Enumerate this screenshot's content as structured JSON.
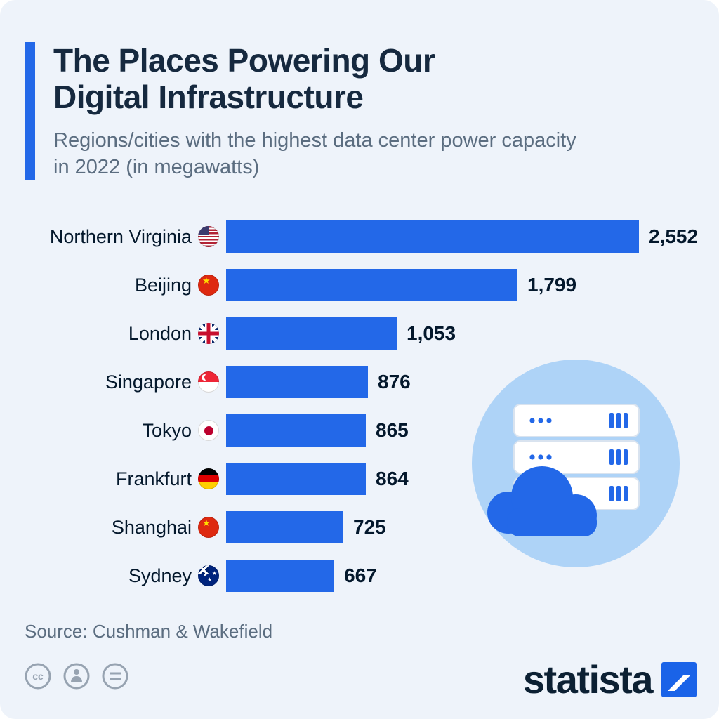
{
  "header": {
    "title": "The Places Powering Our Digital Infrastructure",
    "title_lines": [
      "The Places Powering Our",
      "Digital Infrastructure"
    ],
    "subtitle": "Regions/cities with the highest data center power capacity in 2022 (in megawatts)",
    "subtitle_lines": [
      "Regions/cities with the highest data center power capacity",
      "in 2022 (in megawatts)"
    ]
  },
  "chart_data": {
    "type": "bar",
    "orientation": "horizontal",
    "title": "The Places Powering Our Digital Infrastructure",
    "subtitle": "Regions/cities with the highest data center power capacity in 2022 (in megawatts)",
    "unit": "megawatts",
    "year": 2022,
    "categories": [
      "Northern Virginia",
      "Beijing",
      "London",
      "Singapore",
      "Tokyo",
      "Frankfurt",
      "Shanghai",
      "Sydney"
    ],
    "values": [
      2552,
      1799,
      1053,
      876,
      865,
      864,
      725,
      667
    ],
    "value_labels": [
      "2,552",
      "1,799",
      "1,053",
      "876",
      "865",
      "864",
      "725",
      "667"
    ],
    "flags": [
      "us",
      "cn",
      "gb",
      "sg",
      "jp",
      "de",
      "cn",
      "au"
    ],
    "xlim": [
      0,
      2552
    ],
    "grid": false,
    "legend": false
  },
  "illustration": {
    "name": "data-center-servers-and-cloud",
    "server_count": 3
  },
  "footer": {
    "source": "Source: Cushman & Wakefield",
    "brand_text": "statista",
    "license_icons": [
      "cc-icon",
      "attribution-person-icon",
      "equals-icon"
    ]
  },
  "colors": {
    "background": "#eef3fa",
    "accent_bar": "#2368e8",
    "bar": "#2368e8",
    "title": "#16293f",
    "subtitle": "#5b6d80",
    "label": "#04182c",
    "value": "#04182c",
    "illustration_circle": "#aed3f7",
    "illustration_blue": "#2368e8",
    "source_text": "#5b6d80",
    "brand": "#0c2033",
    "license_icon": "#97a3b1"
  }
}
